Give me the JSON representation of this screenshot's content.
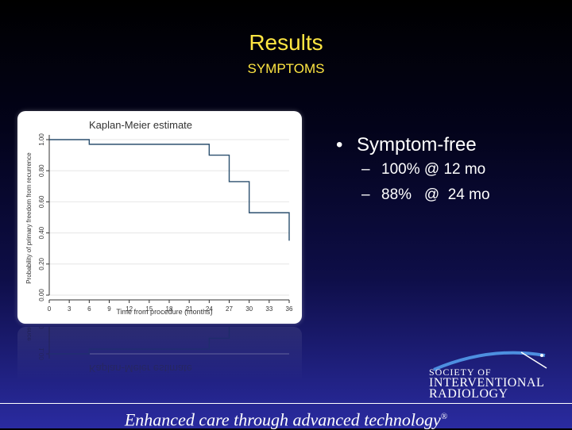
{
  "slide": {
    "title": "Results",
    "subtitle": "SYMPTOMS",
    "tagline": "Enhanced care through advanced technology",
    "tagline_mark": "®"
  },
  "bullets": {
    "main": "Symptom-free",
    "bullet_glyph": "•",
    "dash_glyph": "–",
    "subs": [
      "100% @ 12 mo",
      "88%   @  24 mo"
    ]
  },
  "logo": {
    "line1": "SOCIETY OF",
    "line2": "INTERVENTIONAL",
    "line3": "RADIOLOGY",
    "icon": "swoosh-icon"
  },
  "colors": {
    "title": "#ffe642",
    "curve": "#2b4f6e",
    "gridline": "#e6e6e6",
    "axis_text": "#333333"
  },
  "chart_data": {
    "type": "line",
    "title": "Kaplan-Meier estimate",
    "xlabel": "Time from procedure (months)",
    "ylabel": "Probability of primary freedom from recurrence",
    "xlim": [
      0,
      36
    ],
    "ylim": [
      0,
      1
    ],
    "xticks": [
      0,
      3,
      6,
      9,
      12,
      15,
      18,
      21,
      24,
      27,
      30,
      33,
      36
    ],
    "yticks": [
      "0.00",
      "0.20",
      "0.40",
      "0.60",
      "0.80",
      "1.00"
    ],
    "grid": true,
    "step": true,
    "series": [
      {
        "x": [
          0,
          6,
          6,
          24,
          24,
          27,
          27,
          30,
          30,
          36,
          36
        ],
        "y": [
          1.0,
          1.0,
          0.97,
          0.97,
          0.9,
          0.9,
          0.73,
          0.73,
          0.53,
          0.53,
          0.35
        ]
      }
    ]
  }
}
